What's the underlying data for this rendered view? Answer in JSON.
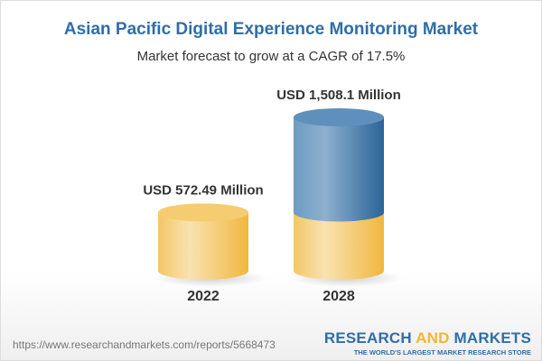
{
  "title": "Asian Pacific Digital Experience Monitoring Market",
  "subtitle": "Market forecast to grow at a CAGR of 17.5%",
  "footer": {
    "url": "https://www.researchandmarkets.com/reports/5668473",
    "logo_part1": "RESEARCH ",
    "logo_part2": "AND",
    "logo_part3": " MARKETS",
    "logo_tagline": "THE WORLD'S LARGEST MARKET RESEARCH STORE"
  },
  "colors": {
    "base": "#f2c24e",
    "growth": "#3f78ad",
    "title": "#2f6ea6"
  },
  "chart_data": {
    "type": "bar",
    "style": "3d-cylinder",
    "categories": [
      "2022",
      "2028"
    ],
    "values": [
      572.49,
      1508.1
    ],
    "data_labels": [
      "USD 572.49 Million",
      "USD 1,508.1 Million"
    ],
    "unit": "USD Million",
    "cagr": "17.5%",
    "grid": false
  }
}
